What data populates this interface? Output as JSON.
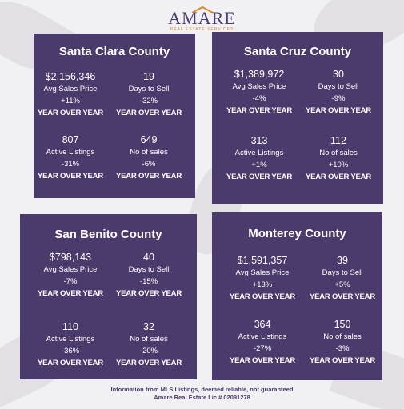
{
  "logo": {
    "name": "AMARE",
    "tagline": "REAL ESTATE SERVICES"
  },
  "panels": [
    {
      "title": "Santa Clara County",
      "stats": [
        {
          "value": "$2,156,346",
          "label": "Avg Sales Price",
          "change": "+11%",
          "period": "YEAR OVER YEAR"
        },
        {
          "value": "19",
          "label": "Days to Sell",
          "change": "-32%",
          "period": "YEAR OVER YEAR"
        },
        {
          "value": "807",
          "label": "Active Listings",
          "change": "-31%",
          "period": "YEAR OVER YEAR"
        },
        {
          "value": "649",
          "label": "No of sales",
          "change": "-6%",
          "period": "YEAR OVER YEAR"
        }
      ]
    },
    {
      "title": "Santa Cruz County",
      "stats": [
        {
          "value": "$1,389,972",
          "label": "Avg Sales Price",
          "change": "-4%",
          "period": "YEAR OVER YEAR"
        },
        {
          "value": "30",
          "label": "Days to Sell",
          "change": "-9%",
          "period": "YEAR OVER YEAR"
        },
        {
          "value": "313",
          "label": "Active Listings",
          "change": "+1%",
          "period": "YEAR OVER YEAR"
        },
        {
          "value": "112",
          "label": "No of sales",
          "change": "+10%",
          "period": "YEAR OVER YEAR"
        }
      ]
    },
    {
      "title": "San Benito County",
      "stats": [
        {
          "value": "$798,143",
          "label": "Avg Sales Price",
          "change": "-7%",
          "period": "YEAR OVER YEAR"
        },
        {
          "value": "40",
          "label": "Days to Sell",
          "change": "-15%",
          "period": "YEAR OVER YEAR"
        },
        {
          "value": "110",
          "label": "Active Listings",
          "change": "-36%",
          "period": "YEAR OVER YEAR"
        },
        {
          "value": "32",
          "label": "No of sales",
          "change": "-20%",
          "period": "YEAR OVER YEAR"
        }
      ]
    },
    {
      "title": "Monterey County",
      "stats": [
        {
          "value": "$1,591,357",
          "label": "Avg Sales Price",
          "change": "+13%",
          "period": "YEAR OVER YEAR"
        },
        {
          "value": "39",
          "label": "Days to Sell",
          "change": "+5%",
          "period": "YEAR OVER YEAR"
        },
        {
          "value": "364",
          "label": "Active Listings",
          "change": "-27%",
          "period": "YEAR OVER YEAR"
        },
        {
          "value": "150",
          "label": "No of sales",
          "change": "-3%",
          "period": "YEAR OVER YEAR"
        }
      ]
    }
  ],
  "footer": [
    "Information from MLS Listings, deemed reliable, not guaranteed",
    "Amare Real Estate Lic # 02091278"
  ]
}
